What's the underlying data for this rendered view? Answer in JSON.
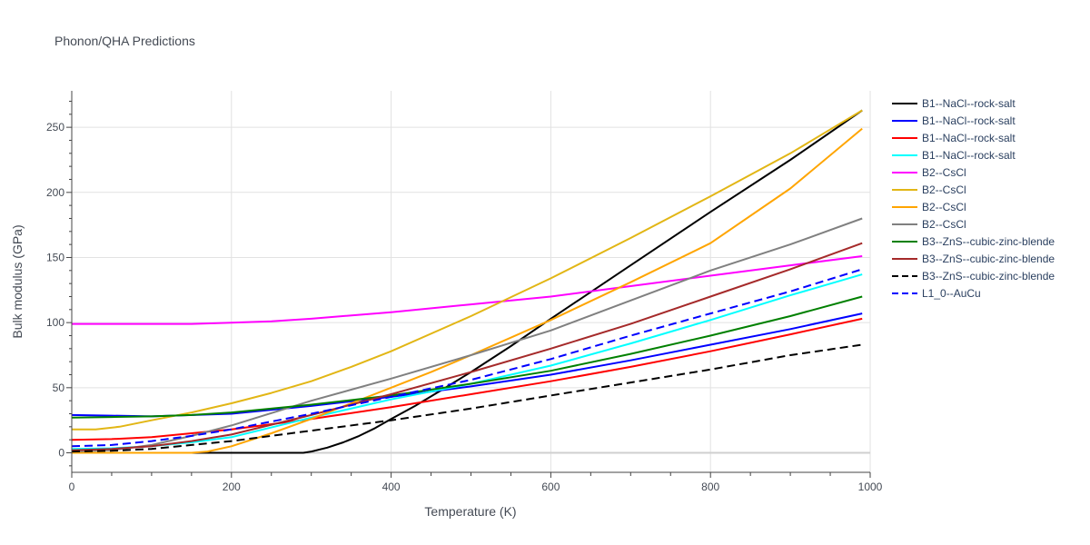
{
  "chart_data": {
    "type": "line",
    "title": "Phonon/QHA Predictions",
    "xlabel": "Temperature (K)",
    "ylabel": "Bulk modulus (GPa)",
    "xlim": [
      0,
      1000
    ],
    "ylim": [
      -15,
      278
    ],
    "x_ticks": [
      0,
      200,
      400,
      600,
      800,
      1000
    ],
    "y_ticks": [
      0,
      50,
      100,
      150,
      200,
      250
    ],
    "grid": true,
    "legend_position": "right",
    "series": [
      {
        "name": "B1--NaCl--rock-salt",
        "color": "#000000",
        "dash": "solid",
        "x": [
          0,
          100,
          200,
          290,
          300,
          320,
          340,
          360,
          380,
          400,
          430,
          460,
          500,
          550,
          600,
          700,
          800,
          900,
          990
        ],
        "y": [
          0,
          0,
          0,
          0,
          1,
          4,
          8,
          13,
          19,
          26,
          36,
          47,
          62,
          82,
          103,
          144,
          185,
          225,
          263
        ]
      },
      {
        "name": "B1--NaCl--rock-salt",
        "color": "#0000ff",
        "dash": "solid",
        "x": [
          0,
          50,
          100,
          200,
          300,
          400,
          500,
          600,
          700,
          800,
          900,
          990
        ],
        "y": [
          29,
          28.5,
          28,
          30,
          36,
          43,
          51,
          60,
          71,
          83,
          95,
          107
        ]
      },
      {
        "name": "B1--NaCl--rock-salt",
        "color": "#ff0000",
        "dash": "solid",
        "x": [
          0,
          50,
          100,
          200,
          300,
          400,
          500,
          600,
          700,
          800,
          900,
          990
        ],
        "y": [
          10,
          10.5,
          12,
          18,
          26,
          35,
          45,
          55,
          66,
          78,
          91,
          103
        ]
      },
      {
        "name": "B1--NaCl--rock-salt",
        "color": "#00ffff",
        "dash": "solid",
        "x": [
          0,
          50,
          100,
          150,
          200,
          300,
          400,
          500,
          600,
          700,
          800,
          900,
          990
        ],
        "y": [
          3,
          3.5,
          5,
          8,
          12,
          27,
          41,
          53,
          67,
          84,
          102,
          121,
          137
        ]
      },
      {
        "name": "B2--CsCl",
        "color": "#ff00ff",
        "dash": "solid",
        "x": [
          0,
          50,
          100,
          150,
          200,
          250,
          300,
          400,
          500,
          600,
          700,
          800,
          900,
          990
        ],
        "y": [
          99,
          99,
          99,
          99,
          100,
          101,
          103,
          108,
          114,
          120,
          128,
          136,
          144,
          151
        ]
      },
      {
        "name": "B2--CsCl",
        "color": "#e2b615",
        "dash": "solid",
        "x": [
          0,
          30,
          60,
          100,
          150,
          200,
          250,
          300,
          350,
          400,
          500,
          600,
          700,
          800,
          900,
          990
        ],
        "y": [
          18,
          18,
          20,
          25,
          31,
          38,
          46,
          55,
          66,
          78,
          105,
          134,
          165,
          197,
          230,
          263
        ]
      },
      {
        "name": "B2--CsCl",
        "color": "#ffa500",
        "dash": "solid",
        "x": [
          0,
          100,
          150,
          170,
          200,
          250,
          300,
          350,
          400,
          450,
          500,
          600,
          700,
          800,
          900,
          990
        ],
        "y": [
          0,
          0,
          0,
          1,
          5,
          15,
          26,
          38,
          50,
          62,
          75,
          102,
          131,
          161,
          203,
          249
        ]
      },
      {
        "name": "B2--CsCl",
        "color": "#808080",
        "dash": "solid",
        "x": [
          0,
          50,
          100,
          150,
          200,
          300,
          400,
          500,
          600,
          700,
          800,
          900,
          990
        ],
        "y": [
          1,
          2,
          6,
          13,
          21,
          40,
          57,
          75,
          94,
          117,
          140,
          160,
          180
        ]
      },
      {
        "name": "B3--ZnS--cubic-zinc-blende",
        "color": "#008000",
        "dash": "solid",
        "x": [
          0,
          50,
          100,
          150,
          200,
          300,
          400,
          500,
          600,
          700,
          800,
          900,
          990
        ],
        "y": [
          27,
          27.5,
          28,
          29,
          31,
          37,
          44,
          53,
          63,
          76,
          90,
          105,
          120
        ]
      },
      {
        "name": "B3--ZnS--cubic-zinc-blende",
        "color": "#a52a2a",
        "dash": "solid",
        "x": [
          0,
          50,
          100,
          150,
          200,
          300,
          400,
          500,
          600,
          700,
          800,
          900,
          990
        ],
        "y": [
          2,
          3,
          5,
          9,
          14,
          29,
          45,
          62,
          80,
          99,
          120,
          141,
          161
        ]
      },
      {
        "name": "B3--ZnS--cubic-zinc-blende",
        "color": "#000000",
        "dash": "dash",
        "x": [
          0,
          50,
          100,
          150,
          200,
          300,
          400,
          500,
          600,
          700,
          800,
          900,
          990
        ],
        "y": [
          1,
          1.5,
          3,
          6,
          9,
          17,
          25,
          34,
          44,
          54,
          64,
          75,
          83
        ]
      },
      {
        "name": "L1_0--AuCu",
        "color": "#0000ff",
        "dash": "dash",
        "x": [
          0,
          50,
          100,
          150,
          200,
          300,
          400,
          500,
          600,
          700,
          800,
          900,
          990
        ],
        "y": [
          5,
          6,
          9,
          13,
          18,
          30,
          43,
          56,
          72,
          90,
          107,
          124,
          141
        ]
      }
    ]
  }
}
